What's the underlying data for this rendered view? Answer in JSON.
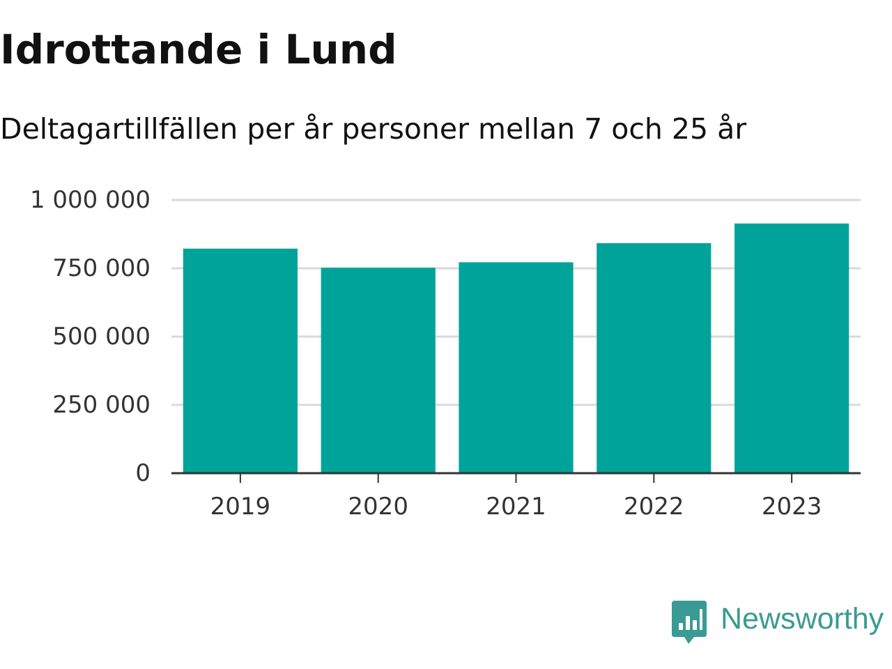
{
  "colors": {
    "bar": "#00a39a",
    "grid": "#d9d9d9",
    "axis": "#333333",
    "brand": "#3a9a94"
  },
  "branding": {
    "name": "Newsworthy",
    "logo_icon": "bar-chart-speech-bubble-icon"
  },
  "chart_data": {
    "type": "bar",
    "title": "Idrottande i Lund",
    "subtitle": "Deltagartillfällen per år personer mellan 7 och 25 år",
    "xlabel": "",
    "ylabel": "",
    "categories": [
      "2019",
      "2020",
      "2021",
      "2022",
      "2023"
    ],
    "values": [
      822000,
      752000,
      772000,
      842000,
      914000
    ],
    "ylim": [
      0,
      1000000
    ],
    "yticks": [
      0,
      250000,
      500000,
      750000,
      1000000
    ],
    "ytick_labels": [
      "0",
      "250 000",
      "500 000",
      "750 000",
      "1 000 000"
    ],
    "grid": true,
    "legend": "none"
  }
}
